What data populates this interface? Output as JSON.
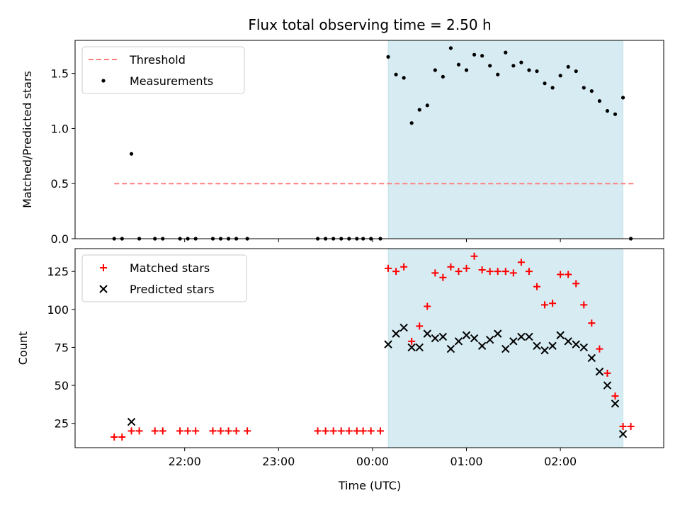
{
  "chart_data": [
    {
      "type": "scatter",
      "title": "Flux total observing time = 2.50 h",
      "xlabel": "",
      "ylabel": "Matched/Predicted stars",
      "ylim": [
        0,
        1.8
      ],
      "xlim": [
        "2024-01-01 20:50",
        "2024-01-02 03:06"
      ],
      "y_ticks": [
        "0.0",
        "0.5",
        "1.0",
        "1.5"
      ],
      "x_ticks": [
        "22:00",
        "23:00",
        "00:00",
        "01:00",
        "02:00"
      ],
      "x_tick_labels_visible": false,
      "grid": false,
      "legend": "upper-left",
      "shaded_span": {
        "x_from": "2024-01-02 00:10",
        "x_to": "2024-01-02 02:40",
        "color": "#add8e6"
      },
      "series": [
        {
          "name": "Threshold",
          "kind": "dashed-line",
          "color": "#ff7f7f",
          "x": [
            "2024-01-01 21:15",
            "2024-01-02 02:48"
          ],
          "y": [
            0.5,
            0.5
          ]
        },
        {
          "name": "Measurements",
          "kind": "dots",
          "color": "#000000",
          "x": [
            "2024-01-01 21:15",
            "2024-01-01 21:20",
            "2024-01-01 21:26",
            "2024-01-01 21:31",
            "2024-01-01 21:41",
            "2024-01-01 21:46",
            "2024-01-01 21:57",
            "2024-01-01 22:02",
            "2024-01-01 22:07",
            "2024-01-01 22:18",
            "2024-01-01 22:23",
            "2024-01-01 22:28",
            "2024-01-01 22:33",
            "2024-01-01 22:40",
            "2024-01-01 23:25",
            "2024-01-01 23:30",
            "2024-01-01 23:35",
            "2024-01-01 23:40",
            "2024-01-01 23:45",
            "2024-01-01 23:50",
            "2024-01-01 23:54",
            "2024-01-01 23:59",
            "2024-01-02 00:05",
            "2024-01-02 00:10",
            "2024-01-02 00:15",
            "2024-01-02 00:20",
            "2024-01-02 00:25",
            "2024-01-02 00:30",
            "2024-01-02 00:35",
            "2024-01-02 00:40",
            "2024-01-02 00:45",
            "2024-01-02 00:50",
            "2024-01-02 00:55",
            "2024-01-02 01:00",
            "2024-01-02 01:05",
            "2024-01-02 01:10",
            "2024-01-02 01:15",
            "2024-01-02 01:20",
            "2024-01-02 01:25",
            "2024-01-02 01:30",
            "2024-01-02 01:35",
            "2024-01-02 01:40",
            "2024-01-02 01:45",
            "2024-01-02 01:50",
            "2024-01-02 01:55",
            "2024-01-02 02:00",
            "2024-01-02 02:05",
            "2024-01-02 02:10",
            "2024-01-02 02:15",
            "2024-01-02 02:20",
            "2024-01-02 02:25",
            "2024-01-02 02:30",
            "2024-01-02 02:35",
            "2024-01-02 02:40",
            "2024-01-02 02:45"
          ],
          "y": [
            0,
            0,
            0.77,
            0,
            0,
            0,
            0,
            0,
            0,
            0,
            0,
            0,
            0,
            0,
            0,
            0,
            0,
            0,
            0,
            0,
            0,
            0,
            0,
            1.65,
            1.49,
            1.46,
            1.05,
            1.17,
            1.21,
            1.53,
            1.47,
            1.73,
            1.58,
            1.53,
            1.67,
            1.66,
            1.57,
            1.49,
            1.69,
            1.57,
            1.6,
            1.53,
            1.52,
            1.41,
            1.37,
            1.48,
            1.56,
            1.52,
            1.37,
            1.34,
            1.25,
            1.16,
            1.13,
            1.28,
            0
          ]
        }
      ]
    },
    {
      "type": "scatter",
      "title": "",
      "xlabel": "Time (UTC)",
      "ylabel": "Count",
      "ylim": [
        9,
        140
      ],
      "xlim": [
        "2024-01-01 20:50",
        "2024-01-02 03:06"
      ],
      "y_ticks": [
        "25",
        "50",
        "75",
        "100",
        "125"
      ],
      "x_ticks": [
        "22:00",
        "23:00",
        "00:00",
        "01:00",
        "02:00"
      ],
      "grid": false,
      "legend": "upper-left",
      "shaded_span": {
        "x_from": "2024-01-02 00:10",
        "x_to": "2024-01-02 02:40",
        "color": "#add8e6"
      },
      "series": [
        {
          "name": "Matched stars",
          "kind": "plus",
          "color": "#ff0000",
          "x": [
            "2024-01-01 21:15",
            "2024-01-01 21:20",
            "2024-01-01 21:26",
            "2024-01-01 21:31",
            "2024-01-01 21:41",
            "2024-01-01 21:46",
            "2024-01-01 21:57",
            "2024-01-01 22:02",
            "2024-01-01 22:07",
            "2024-01-01 22:18",
            "2024-01-01 22:23",
            "2024-01-01 22:28",
            "2024-01-01 22:33",
            "2024-01-01 22:40",
            "2024-01-01 23:25",
            "2024-01-01 23:30",
            "2024-01-01 23:35",
            "2024-01-01 23:40",
            "2024-01-01 23:45",
            "2024-01-01 23:50",
            "2024-01-01 23:54",
            "2024-01-01 23:59",
            "2024-01-02 00:05",
            "2024-01-02 00:10",
            "2024-01-02 00:15",
            "2024-01-02 00:20",
            "2024-01-02 00:25",
            "2024-01-02 00:30",
            "2024-01-02 00:35",
            "2024-01-02 00:40",
            "2024-01-02 00:45",
            "2024-01-02 00:50",
            "2024-01-02 00:55",
            "2024-01-02 01:00",
            "2024-01-02 01:05",
            "2024-01-02 01:10",
            "2024-01-02 01:15",
            "2024-01-02 01:20",
            "2024-01-02 01:25",
            "2024-01-02 01:30",
            "2024-01-02 01:35",
            "2024-01-02 01:40",
            "2024-01-02 01:45",
            "2024-01-02 01:50",
            "2024-01-02 01:55",
            "2024-01-02 02:00",
            "2024-01-02 02:05",
            "2024-01-02 02:10",
            "2024-01-02 02:15",
            "2024-01-02 02:20",
            "2024-01-02 02:25",
            "2024-01-02 02:30",
            "2024-01-02 02:35",
            "2024-01-02 02:40",
            "2024-01-02 02:45"
          ],
          "y": [
            16,
            16,
            20,
            20,
            20,
            20,
            20,
            20,
            20,
            20,
            20,
            20,
            20,
            20,
            20,
            20,
            20,
            20,
            20,
            20,
            20,
            20,
            20,
            127,
            125,
            128,
            79,
            89,
            102,
            124,
            121,
            128,
            125,
            127,
            135,
            126,
            125,
            125,
            125,
            124,
            131,
            125,
            115,
            103,
            104,
            123,
            123,
            117,
            103,
            91,
            74,
            58,
            43,
            23,
            23
          ]
        },
        {
          "name": "Predicted stars",
          "kind": "cross",
          "color": "#000000",
          "x": [
            "2024-01-01 21:26",
            "2024-01-02 00:10",
            "2024-01-02 00:15",
            "2024-01-02 00:20",
            "2024-01-02 00:25",
            "2024-01-02 00:30",
            "2024-01-02 00:35",
            "2024-01-02 00:40",
            "2024-01-02 00:45",
            "2024-01-02 00:50",
            "2024-01-02 00:55",
            "2024-01-02 01:00",
            "2024-01-02 01:05",
            "2024-01-02 01:10",
            "2024-01-02 01:15",
            "2024-01-02 01:20",
            "2024-01-02 01:25",
            "2024-01-02 01:30",
            "2024-01-02 01:35",
            "2024-01-02 01:40",
            "2024-01-02 01:45",
            "2024-01-02 01:50",
            "2024-01-02 01:55",
            "2024-01-02 02:00",
            "2024-01-02 02:05",
            "2024-01-02 02:10",
            "2024-01-02 02:15",
            "2024-01-02 02:20",
            "2024-01-02 02:25",
            "2024-01-02 02:30",
            "2024-01-02 02:35",
            "2024-01-02 02:40"
          ],
          "y": [
            26,
            77,
            84,
            88,
            75,
            75,
            84,
            81,
            82,
            74,
            79,
            83,
            81,
            76,
            80,
            84,
            74,
            79,
            82,
            82,
            76,
            73,
            76,
            83,
            79,
            77,
            75,
            68,
            59,
            50,
            38,
            18
          ]
        }
      ]
    }
  ]
}
